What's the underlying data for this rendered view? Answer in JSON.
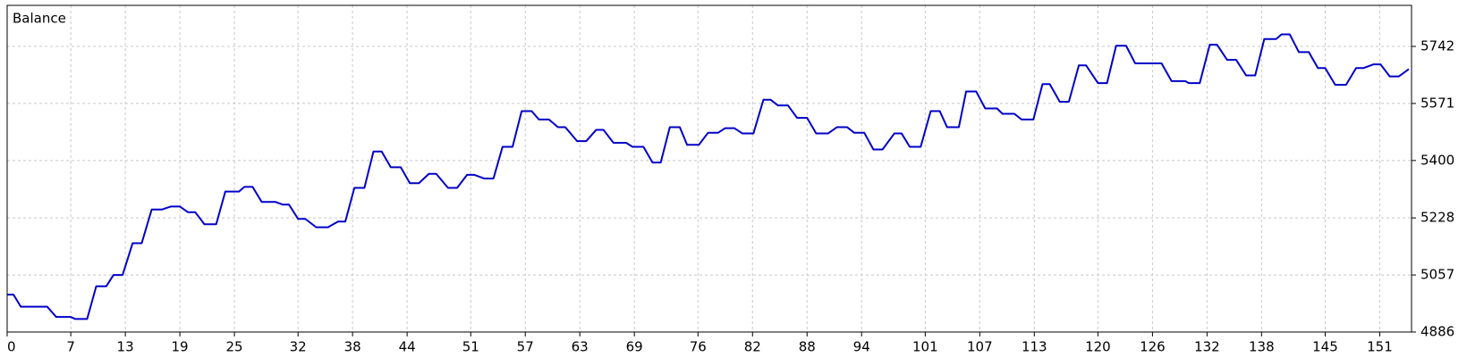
{
  "chart_data": {
    "type": "line",
    "title": "Balance",
    "x": [
      0,
      0.7,
      1.5,
      4.4,
      5.4,
      7,
      7.5,
      8.8,
      9.8,
      10.9,
      11.7,
      12.7,
      13.8,
      14.8,
      15.9,
      17,
      18,
      19,
      19.9,
      20.7,
      21.7,
      23,
      24,
      25.5,
      26.1,
      27,
      28,
      29.5,
      30.3,
      31,
      32,
      32.8,
      34,
      35.3,
      36.4,
      37.2,
      38.2,
      39.3,
      40.3,
      41.2,
      42.2,
      43.3,
      44.3,
      45.3,
      46.4,
      47.2,
      48.5,
      49.5,
      50.6,
      51.4,
      52.5,
      53.5,
      54.5,
      55.6,
      56.6,
      57.7,
      58.5,
      59.6,
      60.6,
      61.4,
      62.7,
      63.7,
      64.8,
      65.6,
      66.7,
      68.1,
      68.8,
      70,
      71,
      71.9,
      72.9,
      74,
      74.8,
      76.1,
      77.1,
      78.2,
      79,
      80,
      80.9,
      82.1,
      83.2,
      84,
      84.8,
      85.9,
      86.9,
      88,
      89,
      90.3,
      91.3,
      92.4,
      93.2,
      94.3,
      95.3,
      96.3,
      97.6,
      98.4,
      99.3,
      100.5,
      101.6,
      102.6,
      103.4,
      104.7,
      105.5,
      106.6,
      107.6,
      108.9,
      109.5,
      110.8,
      111.6,
      112.9,
      113.9,
      114.7,
      115.8,
      116.8,
      117.9,
      118.7,
      120,
      121,
      122,
      123.1,
      124.1,
      127,
      128.1,
      129.6,
      130,
      131.2,
      132.3,
      133.1,
      134.2,
      135.2,
      136.3,
      137.3,
      138.3,
      139.6,
      140.2,
      141.1,
      142.1,
      143.2,
      144.2,
      145,
      146.1,
      147.3,
      148.4,
      149.2,
      150.3,
      151.1,
      152.1,
      153.1,
      154.2
    ],
    "series": [
      {
        "name": "Balance",
        "color": "#0000c8",
        "values": [
          4998,
          4998,
          4962,
          4962,
          4931,
          4931,
          4925,
          4925,
          5023,
          5023,
          5057,
          5057,
          5152,
          5152,
          5253,
          5253,
          5262,
          5262,
          5245,
          5245,
          5209,
          5209,
          5307,
          5307,
          5321,
          5321,
          5276,
          5276,
          5268,
          5268,
          5225,
          5225,
          5200,
          5200,
          5217,
          5217,
          5318,
          5318,
          5427,
          5427,
          5380,
          5380,
          5332,
          5332,
          5360,
          5360,
          5318,
          5318,
          5357,
          5357,
          5346,
          5346,
          5441,
          5441,
          5548,
          5548,
          5523,
          5523,
          5500,
          5500,
          5458,
          5458,
          5492,
          5492,
          5453,
          5453,
          5441,
          5441,
          5394,
          5394,
          5500,
          5500,
          5447,
          5447,
          5483,
          5483,
          5497,
          5497,
          5481,
          5481,
          5582,
          5582,
          5565,
          5565,
          5528,
          5528,
          5481,
          5481,
          5500,
          5500,
          5483,
          5483,
          5433,
          5433,
          5481,
          5481,
          5441,
          5441,
          5548,
          5548,
          5500,
          5500,
          5607,
          5607,
          5556,
          5556,
          5540,
          5540,
          5523,
          5523,
          5629,
          5629,
          5576,
          5576,
          5685,
          5685,
          5632,
          5632,
          5744,
          5744,
          5691,
          5691,
          5638,
          5638,
          5632,
          5632,
          5747,
          5747,
          5702,
          5702,
          5655,
          5655,
          5764,
          5764,
          5778,
          5778,
          5725,
          5725,
          5677,
          5677,
          5627,
          5627,
          5677,
          5677,
          5688,
          5688,
          5652,
          5652,
          5674
        ]
      }
    ],
    "xlim": [
      0,
      154.5
    ],
    "xticks": [
      0,
      7,
      13,
      19,
      25,
      32,
      38,
      44,
      51,
      57,
      63,
      69,
      76,
      82,
      88,
      94,
      101,
      107,
      113,
      120,
      126,
      132,
      138,
      145,
      151
    ],
    "ylim": [
      4886,
      5865
    ],
    "yticks": [
      4886,
      5057,
      5228,
      5400,
      5571,
      5742
    ],
    "grid": true
  }
}
